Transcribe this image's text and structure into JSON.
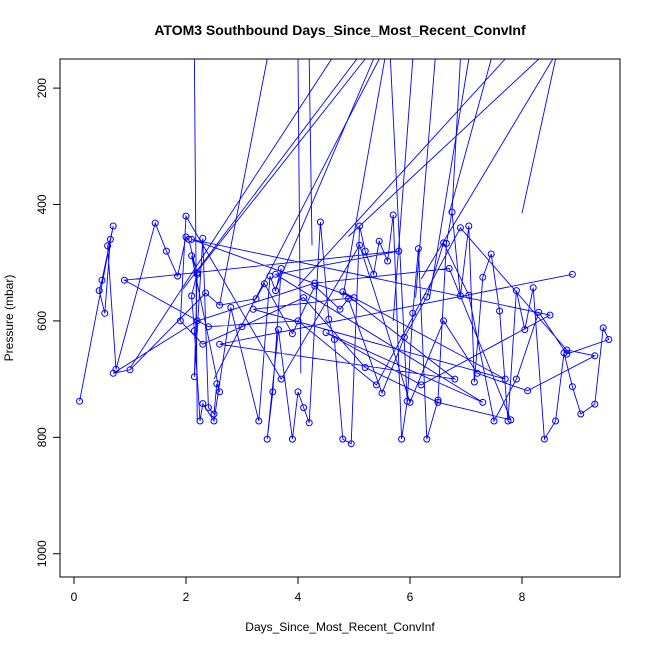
{
  "chart_data": {
    "type": "line",
    "title": "ATOM3 Southbound Days_Since_Most_Recent_ConvInf",
    "xlabel": "Days_Since_Most_Recent_ConvInf",
    "ylabel": "Pressure (mbar)",
    "xlim": [
      -0.25,
      9.75
    ],
    "ylim": [
      1040,
      150
    ],
    "y_reversed": true,
    "x_ticks": [
      0,
      2,
      4,
      6,
      8
    ],
    "y_ticks": [
      200,
      400,
      600,
      800,
      1000
    ],
    "grid": false,
    "legend": "none",
    "line_color": "#0000ff",
    "series": [
      {
        "x": [
          0.1,
          0.7,
          0.5,
          0.45,
          0.55,
          0.65,
          0.6,
          0.75,
          1.45,
          1.65,
          1.85,
          2.0,
          2.05,
          2.2,
          2.15,
          2.3,
          2.4,
          2.5,
          2.55,
          2.6,
          2.1,
          2.2,
          2.1,
          2.15,
          2.25,
          2.3,
          2.5,
          2.8,
          3.3,
          3.5,
          3.6,
          3.7,
          3.55,
          3.45,
          3.65,
          3.9,
          4.0,
          4.1,
          4.2,
          4.4,
          4.55,
          4.65,
          4.8,
          4.95,
          5.1,
          5.2,
          5.35,
          5.45,
          5.6,
          5.7,
          5.85,
          5.95,
          6.05,
          6.15,
          6.3,
          6.5,
          6.65,
          6.75,
          6.9,
          7.05,
          7.15,
          7.3,
          7.45,
          7.6,
          7.75,
          7.9,
          8.05,
          8.2,
          8.4,
          8.6,
          8.75,
          8.9,
          9.05,
          9.3,
          9.45,
          9.55,
          8.8,
          8.3,
          7.9,
          7.5,
          7.05,
          6.6,
          6.3,
          5.9,
          5.5,
          4.9,
          4.75,
          4.3,
          3.9,
          3.4,
          3.25,
          2.6,
          2.35,
          1.0,
          0.7,
          2.2,
          4.3,
          6.7,
          7.8,
          6.5,
          5.2,
          4.1,
          3.0,
          2.3,
          1.9,
          2.0,
          3.7,
          5.1,
          6.0,
          6.6,
          7.2,
          8.1,
          9.3,
          8.8,
          6.9,
          5.4,
          4.0,
          2.4,
          0.9,
          5.8,
          3.6,
          7.3,
          4.5,
          6.2,
          8.5,
          2.1,
          5.0,
          3.2,
          7.7,
          4.8,
          6.8,
          2.6,
          8.9
        ],
        "y": [
          738,
          437,
          530,
          548,
          587,
          460,
          471,
          683,
          432,
          480,
          523,
          456,
          460,
          520,
          696,
          458,
          749,
          760,
          708,
          722,
          488,
          517,
          557,
          617,
          772,
          742,
          772,
          577,
          772,
          523,
          548,
          510,
          722,
          803,
          615,
          803,
          722,
          749,
          775,
          430,
          597,
          632,
          803,
          811,
          437,
          480,
          520,
          463,
          497,
          418,
          803,
          738,
          587,
          476,
          803,
          736,
          467,
          413,
          557,
          437,
          705,
          525,
          485,
          583,
          772,
          548,
          615,
          543,
          803,
          772,
          655,
          713,
          760,
          743,
          612,
          632,
          657,
          585,
          700,
          772,
          556,
          466,
          559,
          628,
          724,
          562,
          580,
          540,
          622,
          536,
          562,
          573,
          552,
          684,
          690,
          600,
          535,
          510,
          770,
          740,
          680,
          560,
          610,
          640,
          600,
          420,
          700,
          470,
          740,
          600,
          690,
          720,
          660,
          650,
          440,
          710,
          600,
          610,
          530,
          480,
          520,
          740,
          620,
          710,
          590,
          460,
          560,
          580,
          700,
          550,
          700,
          640,
          520
        ]
      }
    ],
    "upper_segments": [
      [
        [
          2.15,
          150
        ],
        [
          2.2,
          772
        ]
      ],
      [
        [
          4.2,
          150
        ],
        [
          4.25,
          470
        ]
      ],
      [
        [
          3.45,
          150
        ],
        [
          2.6,
          572
        ]
      ],
      [
        [
          4.0,
          150
        ],
        [
          4.05,
          690
        ]
      ],
      [
        [
          5.55,
          150
        ],
        [
          4.8,
          560
        ]
      ],
      [
        [
          5.65,
          150
        ],
        [
          5.95,
          738
        ]
      ],
      [
        [
          5.2,
          150
        ],
        [
          2.2,
          515
        ]
      ],
      [
        [
          5.45,
          150
        ],
        [
          2.5,
          700
        ]
      ],
      [
        [
          5.35,
          150
        ],
        [
          3.6,
          545
        ]
      ],
      [
        [
          4.6,
          150
        ],
        [
          1.0,
          681
        ]
      ],
      [
        [
          6.05,
          150
        ],
        [
          5.7,
          600
        ]
      ],
      [
        [
          6.9,
          150
        ],
        [
          6.75,
          413
        ]
      ],
      [
        [
          7.05,
          150
        ],
        [
          6.35,
          560
        ]
      ],
      [
        [
          7.7,
          150
        ],
        [
          4.0,
          540
        ]
      ],
      [
        [
          8.3,
          150
        ],
        [
          4.9,
          455
        ]
      ],
      [
        [
          8.6,
          150
        ],
        [
          8.0,
          415
        ]
      ],
      [
        [
          8.55,
          150
        ],
        [
          6.2,
          528
        ]
      ],
      [
        [
          6.45,
          150
        ],
        [
          6.1,
          560
        ]
      ],
      [
        [
          5.05,
          150
        ],
        [
          1.95,
          545
        ]
      ],
      [
        [
          7.45,
          150
        ],
        [
          6.7,
          415
        ]
      ]
    ]
  }
}
